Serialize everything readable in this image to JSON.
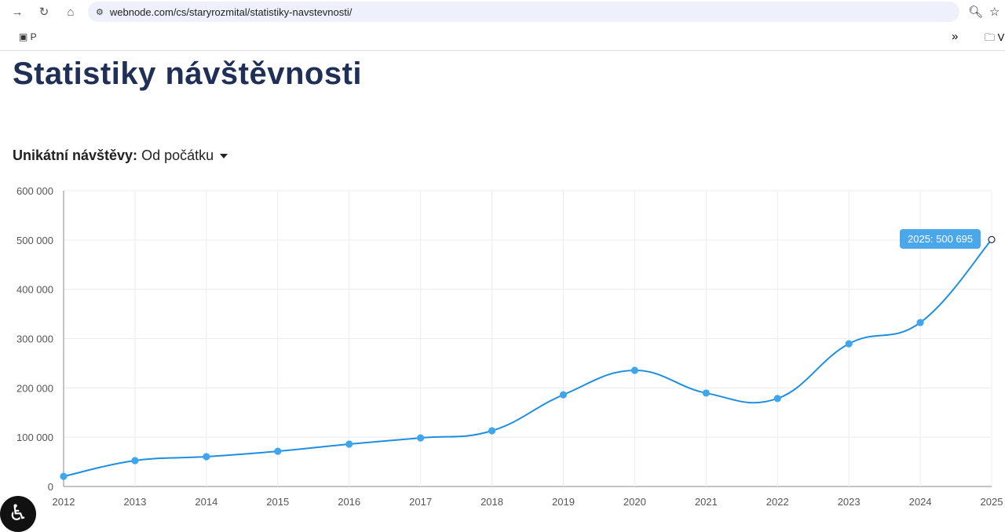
{
  "browser": {
    "url": "webnode.com/cs/staryrozmital/statistiky-navstevnosti/",
    "bookmark_1": "P",
    "bookmark_folder": "V"
  },
  "page": {
    "title": "Statistiky návštěvnosti",
    "filter_label": "Unikátní návštěvy:",
    "filter_value": "Od počátku"
  },
  "tooltip": "2025: 500 695",
  "colors": {
    "line": "#1e8fe0",
    "point": "#3fa6ee",
    "title": "#1f2f55"
  },
  "chart_data": {
    "type": "line",
    "x": [
      "2012",
      "2013",
      "2014",
      "2015",
      "2016",
      "2017",
      "2018",
      "2019",
      "2020",
      "2021",
      "2022",
      "2023",
      "2024",
      "2025"
    ],
    "values": [
      20500,
      52500,
      60500,
      71500,
      86000,
      98500,
      113000,
      186000,
      235500,
      189500,
      178500,
      289500,
      332500,
      500695
    ],
    "yticks": [
      0,
      100000,
      200000,
      300000,
      400000,
      500000,
      600000
    ],
    "ytick_labels": [
      "0",
      "100 000",
      "200 000",
      "300 000",
      "400 000",
      "500 000",
      "600 000"
    ],
    "ylim": [
      0,
      600000
    ],
    "grid": true
  }
}
